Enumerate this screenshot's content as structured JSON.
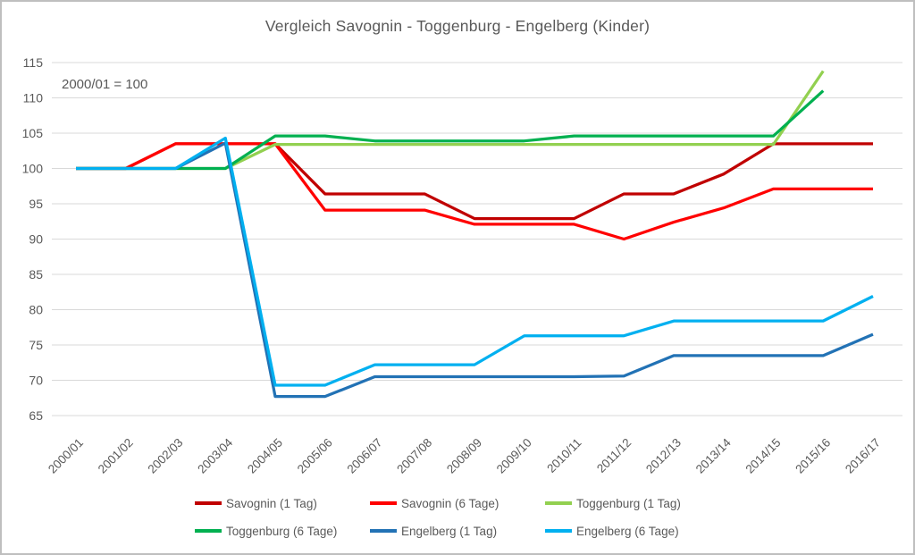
{
  "title": "Vergleich Savognin - Toggenburg  - Engelberg (Kinder)",
  "annotation": "2000/01 = 100",
  "colors": {
    "text": "#595959",
    "gridline": "#D9D9D9",
    "frame_border": "#BFBFBF",
    "background": "#FFFFFF"
  },
  "chart_data": {
    "type": "line",
    "title": "Vergleich Savognin - Toggenburg  - Engelberg (Kinder)",
    "annotation": "2000/01 = 100",
    "xlabel": "",
    "ylabel": "",
    "ylim": [
      65,
      115
    ],
    "ytick_step": 5,
    "grid": "horizontal",
    "legend_position": "bottom",
    "categories": [
      "2000/01",
      "2001/02",
      "2002/03",
      "2003/04",
      "2004/05",
      "2005/06",
      "2006/07",
      "2007/08",
      "2008/09",
      "2009/10",
      "2010/11",
      "2011/12",
      "2012/13",
      "2013/14",
      "2014/15",
      "2015/16",
      "2016/17"
    ],
    "series": [
      {
        "name": "Savognin (1 Tag)",
        "color": "#C00000",
        "values": [
          100,
          100,
          103.5,
          103.5,
          103.5,
          96.4,
          96.4,
          96.4,
          92.9,
          92.9,
          92.9,
          96.4,
          96.4,
          99.2,
          103.5,
          103.5,
          103.5
        ]
      },
      {
        "name": "Savognin (6 Tage)",
        "color": "#FF0000",
        "values": [
          100,
          100,
          103.5,
          103.5,
          103.5,
          94.1,
          94.1,
          94.1,
          92.1,
          92.1,
          92.1,
          90.0,
          92.4,
          94.4,
          97.1,
          97.1,
          97.1
        ]
      },
      {
        "name": "Toggenburg (1 Tag)",
        "color": "#92D050",
        "values": [
          100,
          100,
          100,
          100,
          103.4,
          103.4,
          103.4,
          103.4,
          103.4,
          103.4,
          103.4,
          103.4,
          103.4,
          103.4,
          103.4,
          113.8,
          null
        ]
      },
      {
        "name": "Toggenburg (6 Tage)",
        "color": "#00B050",
        "values": [
          100,
          100,
          100,
          100,
          104.6,
          104.6,
          103.9,
          103.9,
          103.9,
          103.9,
          104.6,
          104.6,
          104.6,
          104.6,
          104.6,
          111.0,
          null
        ]
      },
      {
        "name": "Engelberg (1 Tag)",
        "color": "#2272B5",
        "values": [
          100,
          100,
          100,
          103.6,
          67.7,
          67.7,
          70.5,
          70.5,
          70.5,
          70.5,
          70.5,
          70.6,
          73.5,
          73.5,
          73.5,
          73.5,
          76.5
        ]
      },
      {
        "name": "Engelberg (6 Tage)",
        "color": "#00B0F0",
        "values": [
          100,
          100,
          100,
          104.3,
          69.3,
          69.3,
          72.2,
          72.2,
          72.2,
          76.3,
          76.3,
          76.3,
          78.4,
          78.4,
          78.4,
          78.4,
          81.9
        ]
      }
    ]
  }
}
